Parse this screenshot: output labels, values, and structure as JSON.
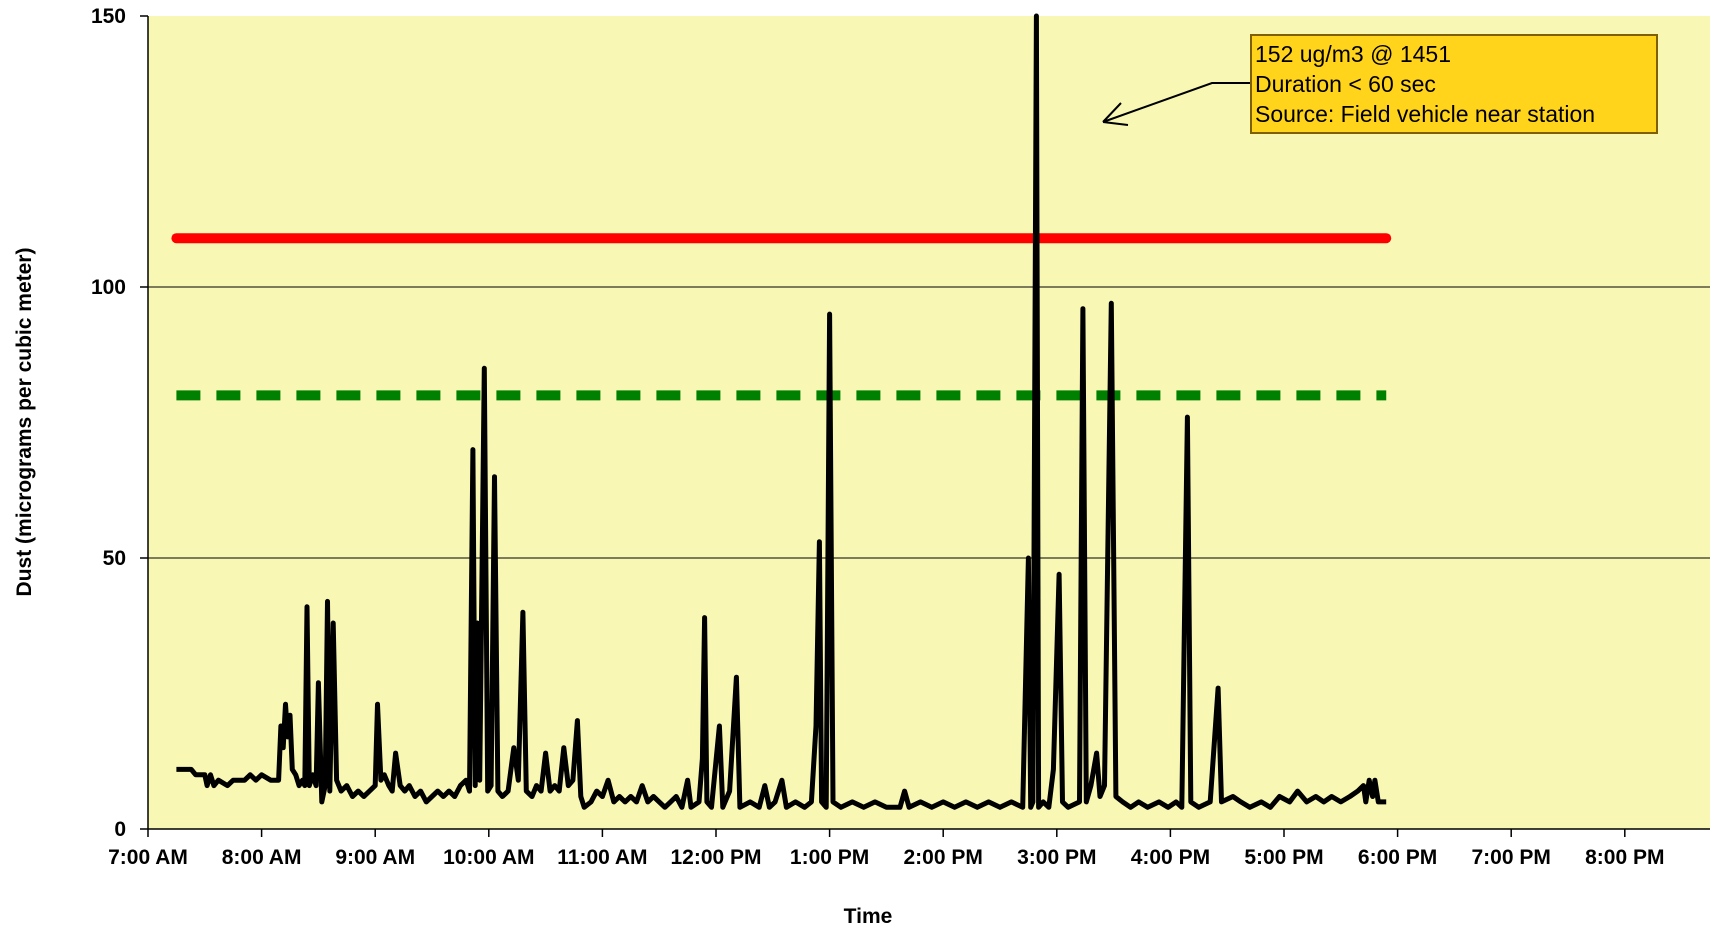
{
  "chart_data": {
    "type": "line",
    "xlabel": "Time",
    "ylabel": "Dust (micrograms per cubic meter)",
    "xlim": [
      7,
      20.75
    ],
    "ylim": [
      0,
      150
    ],
    "y_ticks": [
      0,
      50,
      100,
      150
    ],
    "x_ticks": [
      {
        "value": 7,
        "label": "7:00 AM"
      },
      {
        "value": 8,
        "label": "8:00 AM"
      },
      {
        "value": 9,
        "label": "9:00 AM"
      },
      {
        "value": 10,
        "label": "10:00 AM"
      },
      {
        "value": 11,
        "label": "11:00 AM"
      },
      {
        "value": 12,
        "label": "12:00 PM"
      },
      {
        "value": 13,
        "label": "1:00 PM"
      },
      {
        "value": 14,
        "label": "2:00 PM"
      },
      {
        "value": 15,
        "label": "3:00 PM"
      },
      {
        "value": 16,
        "label": "4:00 PM"
      },
      {
        "value": 17,
        "label": "5:00 PM"
      },
      {
        "value": 18,
        "label": "6:00 PM"
      },
      {
        "value": 19,
        "label": "7:00 PM"
      },
      {
        "value": 20,
        "label": "8:00 PM"
      }
    ],
    "grid": "horizontal major lines at 50 and 100",
    "plot_background": "#F8F8B4",
    "reference_lines": [
      {
        "value": 109,
        "x_range": [
          7.25,
          17.9
        ],
        "color": "#FF0000",
        "style": "solid"
      },
      {
        "value": 80,
        "x_range": [
          7.25,
          17.9
        ],
        "color": "#008000",
        "style": "dashed"
      }
    ],
    "series": [
      {
        "color": "#000000",
        "points": [
          [
            7.25,
            11
          ],
          [
            7.38,
            11
          ],
          [
            7.42,
            10
          ],
          [
            7.5,
            10
          ],
          [
            7.52,
            8
          ],
          [
            7.55,
            10
          ],
          [
            7.58,
            8
          ],
          [
            7.62,
            9
          ],
          [
            7.7,
            8
          ],
          [
            7.75,
            9
          ],
          [
            7.85,
            9
          ],
          [
            7.9,
            10
          ],
          [
            7.95,
            9
          ],
          [
            8.0,
            10
          ],
          [
            8.08,
            9
          ],
          [
            8.15,
            9
          ],
          [
            8.17,
            19
          ],
          [
            8.19,
            15
          ],
          [
            8.21,
            23
          ],
          [
            8.23,
            17
          ],
          [
            8.25,
            21
          ],
          [
            8.27,
            11
          ],
          [
            8.3,
            10
          ],
          [
            8.33,
            8
          ],
          [
            8.36,
            9
          ],
          [
            8.38,
            8
          ],
          [
            8.4,
            41
          ],
          [
            8.42,
            8
          ],
          [
            8.45,
            10
          ],
          [
            8.48,
            8
          ],
          [
            8.5,
            27
          ],
          [
            8.53,
            5
          ],
          [
            8.56,
            8
          ],
          [
            8.58,
            42
          ],
          [
            8.6,
            7
          ],
          [
            8.63,
            38
          ],
          [
            8.66,
            9
          ],
          [
            8.7,
            7
          ],
          [
            8.75,
            8
          ],
          [
            8.8,
            6
          ],
          [
            8.85,
            7
          ],
          [
            8.9,
            6
          ],
          [
            8.95,
            7
          ],
          [
            9.0,
            8
          ],
          [
            9.02,
            23
          ],
          [
            9.05,
            9
          ],
          [
            9.08,
            10
          ],
          [
            9.12,
            8
          ],
          [
            9.15,
            7
          ],
          [
            9.18,
            14
          ],
          [
            9.22,
            8
          ],
          [
            9.26,
            7
          ],
          [
            9.3,
            8
          ],
          [
            9.35,
            6
          ],
          [
            9.4,
            7
          ],
          [
            9.45,
            5
          ],
          [
            9.5,
            6
          ],
          [
            9.55,
            7
          ],
          [
            9.6,
            6
          ],
          [
            9.65,
            7
          ],
          [
            9.7,
            6
          ],
          [
            9.75,
            8
          ],
          [
            9.8,
            9
          ],
          [
            9.83,
            7
          ],
          [
            9.86,
            70
          ],
          [
            9.88,
            8
          ],
          [
            9.9,
            38
          ],
          [
            9.92,
            9
          ],
          [
            9.96,
            85
          ],
          [
            9.99,
            7
          ],
          [
            10.02,
            8
          ],
          [
            10.05,
            65
          ],
          [
            10.08,
            7
          ],
          [
            10.12,
            6
          ],
          [
            10.17,
            7
          ],
          [
            10.22,
            15
          ],
          [
            10.26,
            9
          ],
          [
            10.3,
            40
          ],
          [
            10.33,
            7
          ],
          [
            10.38,
            6
          ],
          [
            10.42,
            8
          ],
          [
            10.46,
            7
          ],
          [
            10.5,
            14
          ],
          [
            10.54,
            7
          ],
          [
            10.58,
            8
          ],
          [
            10.62,
            7
          ],
          [
            10.66,
            15
          ],
          [
            10.7,
            8
          ],
          [
            10.74,
            9
          ],
          [
            10.78,
            20
          ],
          [
            10.81,
            6
          ],
          [
            10.84,
            4
          ],
          [
            10.9,
            5
          ],
          [
            10.95,
            7
          ],
          [
            11.0,
            6
          ],
          [
            11.05,
            9
          ],
          [
            11.1,
            5
          ],
          [
            11.15,
            6
          ],
          [
            11.2,
            5
          ],
          [
            11.25,
            6
          ],
          [
            11.3,
            5
          ],
          [
            11.35,
            8
          ],
          [
            11.4,
            5
          ],
          [
            11.45,
            6
          ],
          [
            11.5,
            5
          ],
          [
            11.55,
            4
          ],
          [
            11.6,
            5
          ],
          [
            11.65,
            6
          ],
          [
            11.7,
            4
          ],
          [
            11.75,
            9
          ],
          [
            11.78,
            4
          ],
          [
            11.85,
            5
          ],
          [
            11.88,
            13
          ],
          [
            11.9,
            39
          ],
          [
            11.92,
            5
          ],
          [
            11.96,
            4
          ],
          [
            12.03,
            19
          ],
          [
            12.06,
            4
          ],
          [
            12.12,
            7
          ],
          [
            12.18,
            28
          ],
          [
            12.21,
            4
          ],
          [
            12.3,
            5
          ],
          [
            12.38,
            4
          ],
          [
            12.43,
            8
          ],
          [
            12.47,
            4
          ],
          [
            12.52,
            5
          ],
          [
            12.58,
            9
          ],
          [
            12.62,
            4
          ],
          [
            12.7,
            5
          ],
          [
            12.78,
            4
          ],
          [
            12.84,
            5
          ],
          [
            12.88,
            19
          ],
          [
            12.91,
            53
          ],
          [
            12.93,
            5
          ],
          [
            12.97,
            4
          ],
          [
            13.0,
            95
          ],
          [
            13.03,
            5
          ],
          [
            13.1,
            4
          ],
          [
            13.2,
            5
          ],
          [
            13.3,
            4
          ],
          [
            13.4,
            5
          ],
          [
            13.5,
            4
          ],
          [
            13.62,
            4
          ],
          [
            13.66,
            7
          ],
          [
            13.7,
            4
          ],
          [
            13.8,
            5
          ],
          [
            13.9,
            4
          ],
          [
            14.0,
            5
          ],
          [
            14.1,
            4
          ],
          [
            14.2,
            5
          ],
          [
            14.3,
            4
          ],
          [
            14.4,
            5
          ],
          [
            14.5,
            4
          ],
          [
            14.6,
            5
          ],
          [
            14.7,
            4
          ],
          [
            14.75,
            50
          ],
          [
            14.77,
            4
          ],
          [
            14.79,
            5
          ],
          [
            14.82,
            152
          ],
          [
            14.84,
            4
          ],
          [
            14.88,
            5
          ],
          [
            14.93,
            4
          ],
          [
            14.97,
            11
          ],
          [
            15.02,
            47
          ],
          [
            15.05,
            5
          ],
          [
            15.1,
            4
          ],
          [
            15.2,
            5
          ],
          [
            15.23,
            96
          ],
          [
            15.26,
            5
          ],
          [
            15.3,
            8
          ],
          [
            15.35,
            14
          ],
          [
            15.38,
            6
          ],
          [
            15.42,
            8
          ],
          [
            15.48,
            97
          ],
          [
            15.52,
            6
          ],
          [
            15.58,
            5
          ],
          [
            15.65,
            4
          ],
          [
            15.72,
            5
          ],
          [
            15.8,
            4
          ],
          [
            15.9,
            5
          ],
          [
            15.98,
            4
          ],
          [
            16.05,
            5
          ],
          [
            16.1,
            4
          ],
          [
            16.15,
            76
          ],
          [
            16.18,
            5
          ],
          [
            16.25,
            4
          ],
          [
            16.35,
            5
          ],
          [
            16.42,
            26
          ],
          [
            16.45,
            5
          ],
          [
            16.55,
            6
          ],
          [
            16.62,
            5
          ],
          [
            16.7,
            4
          ],
          [
            16.8,
            5
          ],
          [
            16.88,
            4
          ],
          [
            16.96,
            6
          ],
          [
            17.05,
            5
          ],
          [
            17.12,
            7
          ],
          [
            17.2,
            5
          ],
          [
            17.28,
            6
          ],
          [
            17.35,
            5
          ],
          [
            17.42,
            6
          ],
          [
            17.5,
            5
          ],
          [
            17.58,
            6
          ],
          [
            17.65,
            7
          ],
          [
            17.7,
            8
          ],
          [
            17.72,
            5
          ],
          [
            17.75,
            9
          ],
          [
            17.78,
            6
          ],
          [
            17.8,
            9
          ],
          [
            17.83,
            5
          ],
          [
            17.9,
            5
          ]
        ]
      }
    ],
    "annotations": [
      {
        "lines": [
          "152 ug/m3 @ 1451",
          "Duration < 60 sec",
          "Source: Field vehicle near station"
        ],
        "box_fill": "#FFD41A",
        "box_border": "#7F6000",
        "arrow": true
      }
    ]
  }
}
